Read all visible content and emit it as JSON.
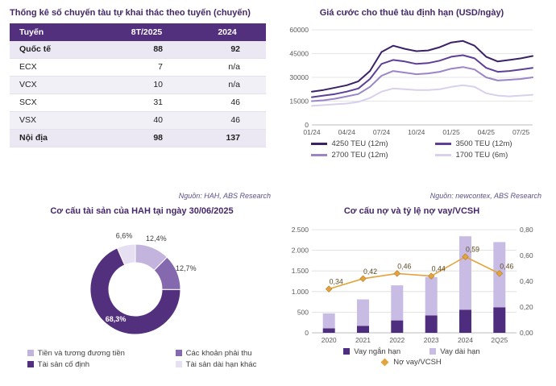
{
  "theme": {
    "title_color": "#44276B",
    "source_color": "#5D5086",
    "axis_text_color": "#595959",
    "grid_color": "#DCDCDC",
    "table_header_bg": "#53307E",
    "accent_gold": "#E3A33D"
  },
  "chart_data": [
    {
      "id": "fleet-table",
      "type": "table",
      "title": "Thống kê số chuyến tàu tự khai thác theo tuyến (chuyến)",
      "columns": [
        "Tuyến",
        "8T/2025",
        "2024"
      ],
      "rows": [
        [
          "Quốc tế",
          "88",
          "92"
        ],
        [
          "ECX",
          "7",
          "n/a"
        ],
        [
          "VCX",
          "10",
          "n/a"
        ],
        [
          "SCX",
          "31",
          "46"
        ],
        [
          "VSX",
          "40",
          "46"
        ],
        [
          "Nội địa",
          "98",
          "137"
        ]
      ],
      "bold_rows": [
        0,
        5
      ],
      "source": "Nguồn: HAH, ABS Research"
    },
    {
      "id": "charter-rates",
      "type": "line",
      "title": "Giá cước cho thuê tàu định hạn (USD/ngày)",
      "ylim": [
        0,
        60000
      ],
      "y_ticks": [
        0,
        15000,
        30000,
        45000,
        60000
      ],
      "x_ticks": [
        "01/24",
        "04/24",
        "07/24",
        "10/24",
        "01/25",
        "04/25",
        "07/25"
      ],
      "x_tick_step": 3,
      "grid": true,
      "legend_position": "bottom",
      "series": [
        {
          "name": "4250 TEU (12m)",
          "color": "#3B2166",
          "values": [
            21000,
            22000,
            23500,
            25000,
            27500,
            34000,
            46000,
            50000,
            48000,
            46500,
            47000,
            49000,
            52000,
            53000,
            50000,
            43000,
            40000,
            41000,
            42000,
            43500
          ]
        },
        {
          "name": "3500 TEU (12m)",
          "color": "#5F3E96",
          "values": [
            17500,
            18500,
            19500,
            21000,
            23000,
            29000,
            38500,
            41000,
            40000,
            38500,
            39000,
            40500,
            43000,
            44000,
            42000,
            36000,
            33500,
            34000,
            35000,
            36000
          ]
        },
        {
          "name": "2700 TEU (12m)",
          "color": "#9B85C7",
          "values": [
            15000,
            15500,
            16500,
            18000,
            19500,
            24000,
            31000,
            34000,
            33000,
            32000,
            32500,
            33500,
            35500,
            36500,
            35000,
            30000,
            28000,
            28500,
            29000,
            30000
          ]
        },
        {
          "name": "1700 TEU (6m)",
          "color": "#D9D0EC",
          "values": [
            12000,
            12500,
            13000,
            13500,
            14500,
            17000,
            21000,
            23000,
            22500,
            22000,
            22000,
            22500,
            24000,
            25000,
            24000,
            20000,
            18500,
            18000,
            18500,
            19000
          ]
        }
      ],
      "source": "Nguồn: newcontex, ABS Research"
    },
    {
      "id": "asset-structure",
      "type": "pie",
      "donut": true,
      "title": "Cơ cấu tài sản của HAH tại ngày 30/06/2025",
      "labels": [
        "Tiền và tương đương tiền",
        "Các khoản phải thu",
        "Tài sản cố định",
        "Tài sản dài hạn khác"
      ],
      "values": [
        12.4,
        12.7,
        68.3,
        6.6
      ],
      "pct_labels": [
        "12,4%",
        "12,7%",
        "68,3%",
        "6,6%"
      ],
      "colors": [
        "#C2B4DD",
        "#8569AE",
        "#53307E",
        "#E6E0F2"
      ]
    },
    {
      "id": "debt-structure",
      "type": "bar",
      "stacked": true,
      "title": "Cơ cấu nợ và tỷ lệ nợ vay/VCSH",
      "categories": [
        "2020",
        "2021",
        "2022",
        "2023",
        "2024",
        "2Q25"
      ],
      "left_axis": {
        "lim": [
          0,
          2500
        ],
        "ticks": [
          0,
          500,
          1000,
          1500,
          2000,
          2500
        ],
        "tick_labels": [
          "0",
          "500",
          "1.000",
          "1.500",
          "2.000",
          "2.500"
        ]
      },
      "right_axis": {
        "lim": [
          0,
          0.8
        ],
        "ticks": [
          0,
          0.2,
          0.4,
          0.6,
          0.8
        ],
        "tick_labels": [
          "0,00",
          "0,20",
          "0,40",
          "0,60",
          "0,80"
        ]
      },
      "series": [
        {
          "name": "Vay ngắn hạn",
          "type": "bar",
          "color": "#4E2C7E",
          "values": [
            110,
            170,
            300,
            420,
            560,
            620
          ]
        },
        {
          "name": "Vay dài hạn",
          "type": "bar",
          "color": "#C9BCE4",
          "values": [
            360,
            640,
            850,
            930,
            1780,
            1580
          ]
        },
        {
          "name": "Nợ vay/VCSH",
          "type": "line",
          "axis": "right",
          "color": "#E3A33D",
          "values": [
            0.34,
            0.42,
            0.46,
            0.44,
            0.59,
            0.46
          ],
          "value_labels": [
            "0,34",
            "0,42",
            "0,46",
            "0,44",
            "0,59",
            "0,46"
          ]
        }
      ]
    }
  ]
}
